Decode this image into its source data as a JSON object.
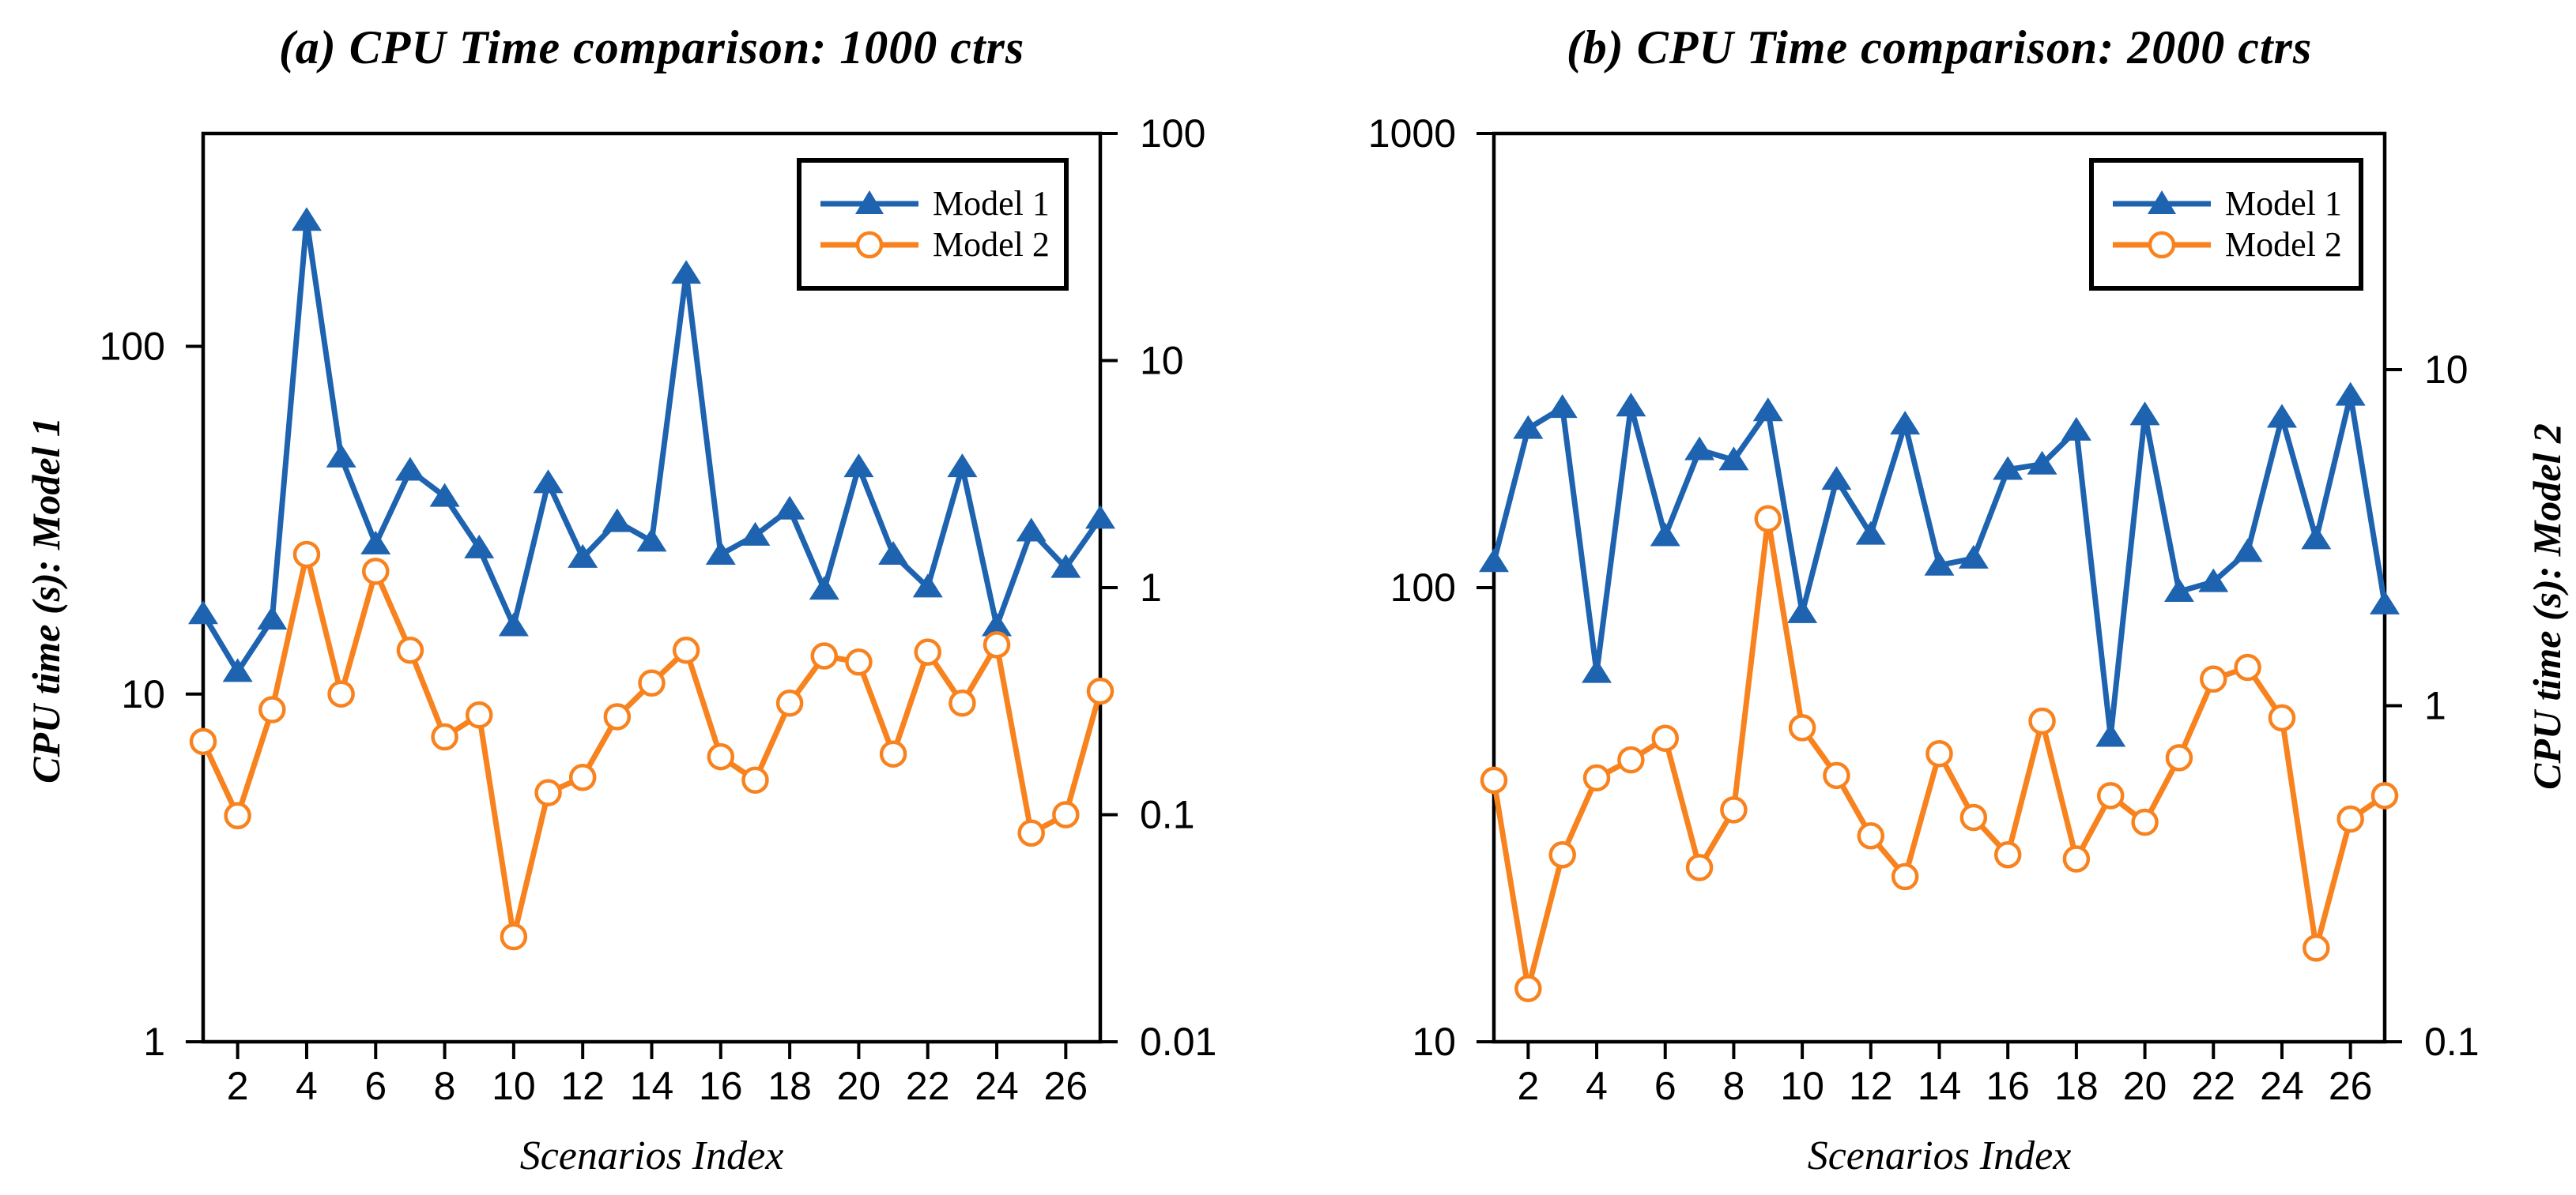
{
  "theme": {
    "model1_color": "#1e63b0",
    "model2_color": "#f8821e",
    "axis_color": "#000000",
    "background": "#ffffff"
  },
  "chart_data": [
    {
      "type": "line",
      "id": "a",
      "title": "(a) CPU Time comparison: 1000 ctrs",
      "xlabel": "Scenarios Index",
      "ylabel_left": "CPU time (s): Model 1",
      "grid": false,
      "legend_position": "top-right",
      "x": [
        1,
        2,
        3,
        4,
        5,
        6,
        7,
        8,
        9,
        10,
        11,
        12,
        13,
        14,
        15,
        16,
        17,
        18,
        19,
        20,
        21,
        22,
        23,
        24,
        25,
        26,
        27
      ],
      "x_ticks": [
        2,
        4,
        6,
        8,
        10,
        12,
        14,
        16,
        18,
        20,
        22,
        24,
        26
      ],
      "y_left_axis": {
        "scale": "log",
        "ticks": [
          100,
          10,
          1
        ],
        "labels": [
          "100",
          "10",
          "1"
        ],
        "range": [
          1,
          408
        ]
      },
      "y_right_axis": {
        "scale": "log",
        "ticks": [
          100,
          10,
          1,
          0.1,
          0.01
        ],
        "labels": [
          "100",
          "10",
          "1",
          "0.1",
          "0.01"
        ],
        "range": [
          0.01,
          100
        ]
      },
      "series": [
        {
          "name": "Model 1",
          "axis": "left",
          "marker": "triangle",
          "color": "#1e63b0",
          "values": [
            17,
            11.6,
            16.4,
            230,
            48,
            27,
            44,
            37,
            26.3,
            15.7,
            40.5,
            24.7,
            31.3,
            27.5,
            162,
            25.2,
            28.6,
            34,
            20,
            45,
            25.2,
            20.3,
            45,
            15.7,
            29.4,
            23.1,
            32
          ]
        },
        {
          "name": "Model 2",
          "axis": "right",
          "marker": "circle-open",
          "color": "#f8821e",
          "values": [
            0.21,
            0.099,
            0.29,
            1.4,
            0.34,
            1.18,
            0.53,
            0.22,
            0.275,
            0.029,
            0.125,
            0.146,
            0.27,
            0.38,
            0.53,
            0.18,
            0.142,
            0.31,
            0.5,
            0.47,
            0.185,
            0.52,
            0.31,
            0.56,
            0.083,
            0.1,
            0.35
          ]
        }
      ]
    },
    {
      "type": "line",
      "id": "b",
      "title": "(b) CPU Time comparison: 2000 ctrs",
      "xlabel": "Scenarios Index",
      "ylabel_right": "CPU time (s): Model 2",
      "grid": false,
      "legend_position": "top-right",
      "x": [
        1,
        2,
        3,
        4,
        5,
        6,
        7,
        8,
        9,
        10,
        11,
        12,
        13,
        14,
        15,
        16,
        17,
        18,
        19,
        20,
        21,
        22,
        23,
        24,
        25,
        26,
        27
      ],
      "x_ticks": [
        2,
        4,
        6,
        8,
        10,
        12,
        14,
        16,
        18,
        20,
        22,
        24,
        26
      ],
      "y_left_axis": {
        "scale": "log",
        "ticks": [
          1000,
          100,
          10
        ],
        "labels": [
          "1000",
          "100",
          "10"
        ],
        "range": [
          10,
          1000
        ]
      },
      "y_right_axis": {
        "scale": "log",
        "ticks": [
          10,
          1,
          0.1
        ],
        "labels": [
          "10",
          "1",
          "0.1"
        ],
        "range": [
          0.1,
          50
        ]
      },
      "series": [
        {
          "name": "Model 1",
          "axis": "left",
          "marker": "triangle",
          "color": "#1e63b0",
          "values": [
            114,
            224,
            249,
            65,
            251,
            130,
            201,
            191,
            245,
            88,
            173,
            131,
            229,
            112,
            116,
            182,
            187,
            222,
            47,
            240,
            98,
            103,
            120,
            237,
            128,
            265,
            92
          ]
        },
        {
          "name": "Model 2",
          "axis": "right",
          "marker": "circle-open",
          "color": "#f8821e",
          "values": [
            0.6,
            0.144,
            0.36,
            0.61,
            0.69,
            0.8,
            0.33,
            0.49,
            3.6,
            0.86,
            0.62,
            0.41,
            0.31,
            0.72,
            0.465,
            0.36,
            0.9,
            0.35,
            0.54,
            0.45,
            0.7,
            1.2,
            1.3,
            0.92,
            0.19,
            0.46,
            0.54
          ]
        }
      ]
    }
  ]
}
